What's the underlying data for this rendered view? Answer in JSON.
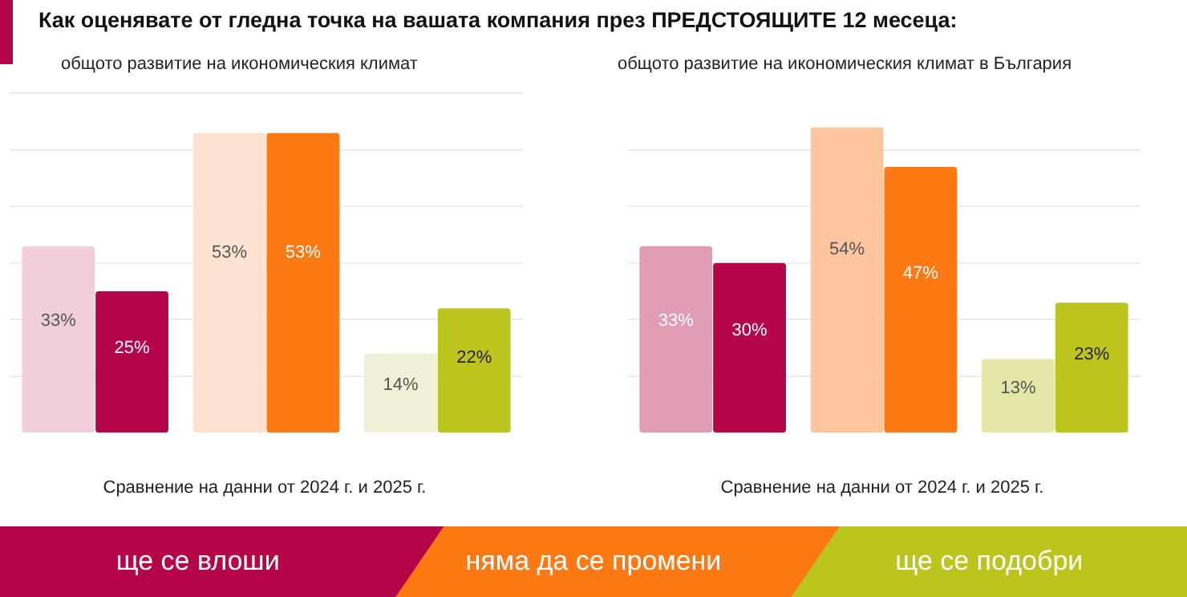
{
  "chart_data": [
    {
      "type": "other",
      "title": "Как оценявате от гледна точка на вашата компания през ПРЕДСТОЯЩИТЕ 12 месеца:"
    },
    {
      "type": "bar",
      "title": "общото развитие на икономическия климат",
      "xlabel": "Сравнение на данни от 2024 г. и 2025 г.",
      "categories": [
        null,
        null,
        null
      ],
      "series": [
        {
          "colors": [
            "#f0cfdb",
            "#fde2cf",
            "#eff0d5"
          ],
          "values": [
            33,
            53,
            14
          ],
          "value_labels": [
            "33%",
            "53%",
            "14%"
          ]
        },
        {
          "colors": [
            "#b5064a",
            "#fd7913",
            "#bcc41e"
          ],
          "values": [
            25,
            53,
            22
          ],
          "value_labels": [
            "25%",
            "53%",
            "22%"
          ]
        }
      ],
      "yticks": [
        {
          "value": 10,
          "label": null
        },
        {
          "value": 20,
          "label": null
        },
        {
          "value": 30,
          "label": null
        },
        {
          "value": 40,
          "label": null
        },
        {
          "value": 50,
          "label": null
        },
        {
          "value": 60,
          "label": null
        }
      ],
      "grid": "y",
      "legend": false
    },
    {
      "type": "bar",
      "title": "общото развитие на икономическия климат в България",
      "xlabel": "Сравнение на данни от 2024 г. и 2025 г.",
      "categories": [
        null,
        null,
        null
      ],
      "series": [
        {
          "colors": [
            "#e09bb5",
            "#fec69e",
            "#e4e7a6"
          ],
          "values": [
            33,
            54,
            13
          ],
          "value_labels": [
            "33%",
            "54%",
            "13%"
          ]
        },
        {
          "colors": [
            "#b5064a",
            "#fd7913",
            "#bcc41e"
          ],
          "values": [
            30,
            47,
            23
          ],
          "value_labels": [
            "30%",
            "47%",
            "23%"
          ]
        }
      ],
      "yticks": [
        {
          "value": 10,
          "label": null
        },
        {
          "value": 20,
          "label": null
        },
        {
          "value": 30,
          "label": null
        },
        {
          "value": 40,
          "label": null
        },
        {
          "value": 50,
          "label": null
        }
      ],
      "grid": "y",
      "legend": false
    },
    {
      "type": "other",
      "annotations": [
        "ще се влоши",
        "няма да се промени",
        "ще се подобри"
      ],
      "colors": [
        "#b5064a",
        "#fd7913",
        "#bcc41e"
      ]
    }
  ]
}
